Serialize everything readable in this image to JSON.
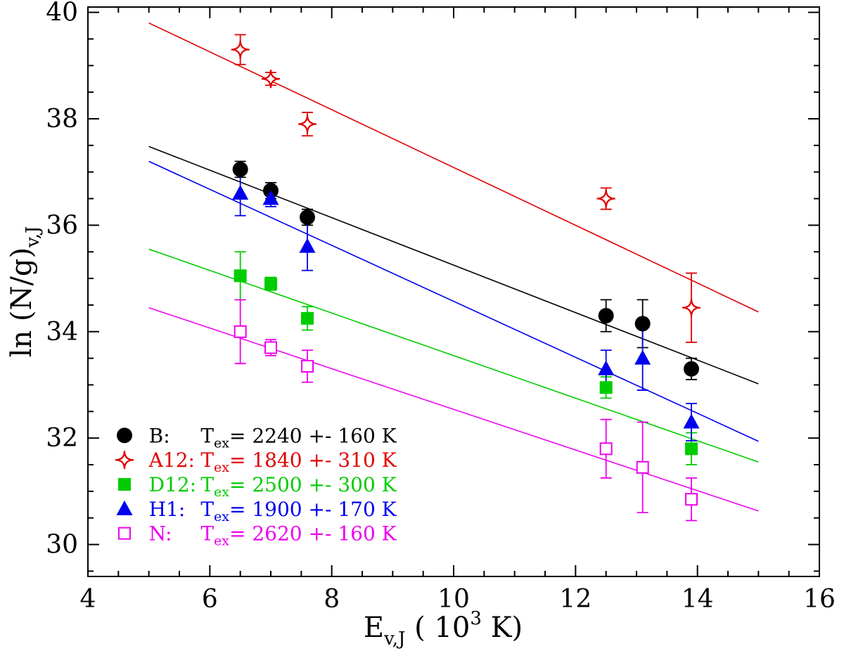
{
  "chart_data": {
    "type": "scatter",
    "title": "",
    "xlabel": "E_v,J ( 10^3 K)",
    "ylabel": "ln (N/g)_v,J",
    "xlabel_parts": [
      {
        "t": "E",
        "s": "n"
      },
      {
        "t": "v,J",
        "s": "sub"
      },
      {
        "t": " ( 10",
        "s": "n"
      },
      {
        "t": "3",
        "s": "sup"
      },
      {
        "t": " K)",
        "s": "n"
      }
    ],
    "ylabel_parts": [
      {
        "t": "ln (N/g)",
        "s": "n"
      },
      {
        "t": "v,J",
        "s": "sub"
      }
    ],
    "xlim": [
      4,
      16
    ],
    "ylim": [
      29.4,
      40.1
    ],
    "x_major_ticks": [
      4,
      6,
      8,
      10,
      12,
      14,
      16
    ],
    "y_major_ticks": [
      30,
      32,
      34,
      36,
      38,
      40
    ],
    "minor_tick_step": 0.5,
    "grid": false,
    "axis_color": "#000000",
    "background": "#ffffff",
    "legend": {
      "position": "lower-left",
      "marker_x": 4.6,
      "label_x": 5.0,
      "value_x": 5.85,
      "y_start": 32.05,
      "y_step": 0.46,
      "t_symbol": "T",
      "t_subscript": "ex",
      "equals": "=",
      "plus_minus": "+-",
      "unit": "K"
    },
    "series": [
      {
        "name": "B",
        "legend_label": "B:",
        "tex_value": "2240",
        "tex_error": "160",
        "color": "#000000",
        "marker": "filled-circle",
        "points": [
          {
            "x": 6.5,
            "y": 37.05,
            "err": 0.15
          },
          {
            "x": 7.0,
            "y": 36.65,
            "err": 0.15
          },
          {
            "x": 7.6,
            "y": 36.15,
            "err": 0.15
          },
          {
            "x": 12.5,
            "y": 34.3,
            "err": 0.3
          },
          {
            "x": 13.1,
            "y": 34.15,
            "err": 0.45
          },
          {
            "x": 13.9,
            "y": 33.3,
            "err": 0.2
          }
        ],
        "fit_line": {
          "x1": 5.0,
          "y1": 37.48,
          "x2": 15.0,
          "y2": 33.02
        }
      },
      {
        "name": "A12",
        "legend_label": "A12:",
        "tex_value": "1840",
        "tex_error": "310",
        "color": "#e00000",
        "marker": "open-star",
        "points": [
          {
            "x": 6.5,
            "y": 39.3,
            "err": 0.28
          },
          {
            "x": 7.0,
            "y": 38.75,
            "err": 0.12
          },
          {
            "x": 7.6,
            "y": 37.9,
            "err": 0.22
          },
          {
            "x": 12.5,
            "y": 36.5,
            "err": 0.2
          },
          {
            "x": 13.9,
            "y": 34.45,
            "err": 0.65
          }
        ],
        "fit_line": {
          "x1": 5.0,
          "y1": 39.8,
          "x2": 15.0,
          "y2": 34.37
        }
      },
      {
        "name": "D12",
        "legend_label": "D12:",
        "tex_value": "2500",
        "tex_error": "300",
        "color": "#00cc00",
        "marker": "filled-square",
        "points": [
          {
            "x": 6.5,
            "y": 35.05,
            "err": 0.45
          },
          {
            "x": 7.0,
            "y": 34.9,
            "err": 0.12
          },
          {
            "x": 7.6,
            "y": 34.25,
            "err": 0.22
          },
          {
            "x": 12.5,
            "y": 32.95,
            "err": 0.2
          },
          {
            "x": 13.9,
            "y": 31.8,
            "err": 0.3
          }
        ],
        "fit_line": {
          "x1": 5.0,
          "y1": 35.55,
          "x2": 15.0,
          "y2": 31.55
        }
      },
      {
        "name": "H1",
        "legend_label": "H1:",
        "tex_value": "1900",
        "tex_error": "170",
        "color": "#0000ee",
        "marker": "filled-triangle",
        "points": [
          {
            "x": 6.5,
            "y": 36.6,
            "err": 0.42
          },
          {
            "x": 7.0,
            "y": 36.5,
            "err": 0.15
          },
          {
            "x": 7.6,
            "y": 35.6,
            "err": 0.45
          },
          {
            "x": 12.5,
            "y": 33.3,
            "err": 0.35
          },
          {
            "x": 13.1,
            "y": 33.5,
            "err": 0.6
          },
          {
            "x": 13.9,
            "y": 32.3,
            "err": 0.35
          }
        ],
        "fit_line": {
          "x1": 5.0,
          "y1": 37.2,
          "x2": 15.0,
          "y2": 31.94
        }
      },
      {
        "name": "N",
        "legend_label": "N:",
        "tex_value": "2620",
        "tex_error": "160",
        "color": "#ee00ee",
        "marker": "open-square",
        "points": [
          {
            "x": 6.5,
            "y": 34.0,
            "err": 0.6
          },
          {
            "x": 7.0,
            "y": 33.7,
            "err": 0.15
          },
          {
            "x": 7.6,
            "y": 33.35,
            "err": 0.3
          },
          {
            "x": 12.5,
            "y": 31.8,
            "err": 0.55
          },
          {
            "x": 13.1,
            "y": 31.45,
            "err": 0.85
          },
          {
            "x": 13.9,
            "y": 30.85,
            "err": 0.4
          }
        ],
        "fit_line": {
          "x1": 5.0,
          "y1": 34.45,
          "x2": 15.0,
          "y2": 30.63
        }
      }
    ]
  }
}
